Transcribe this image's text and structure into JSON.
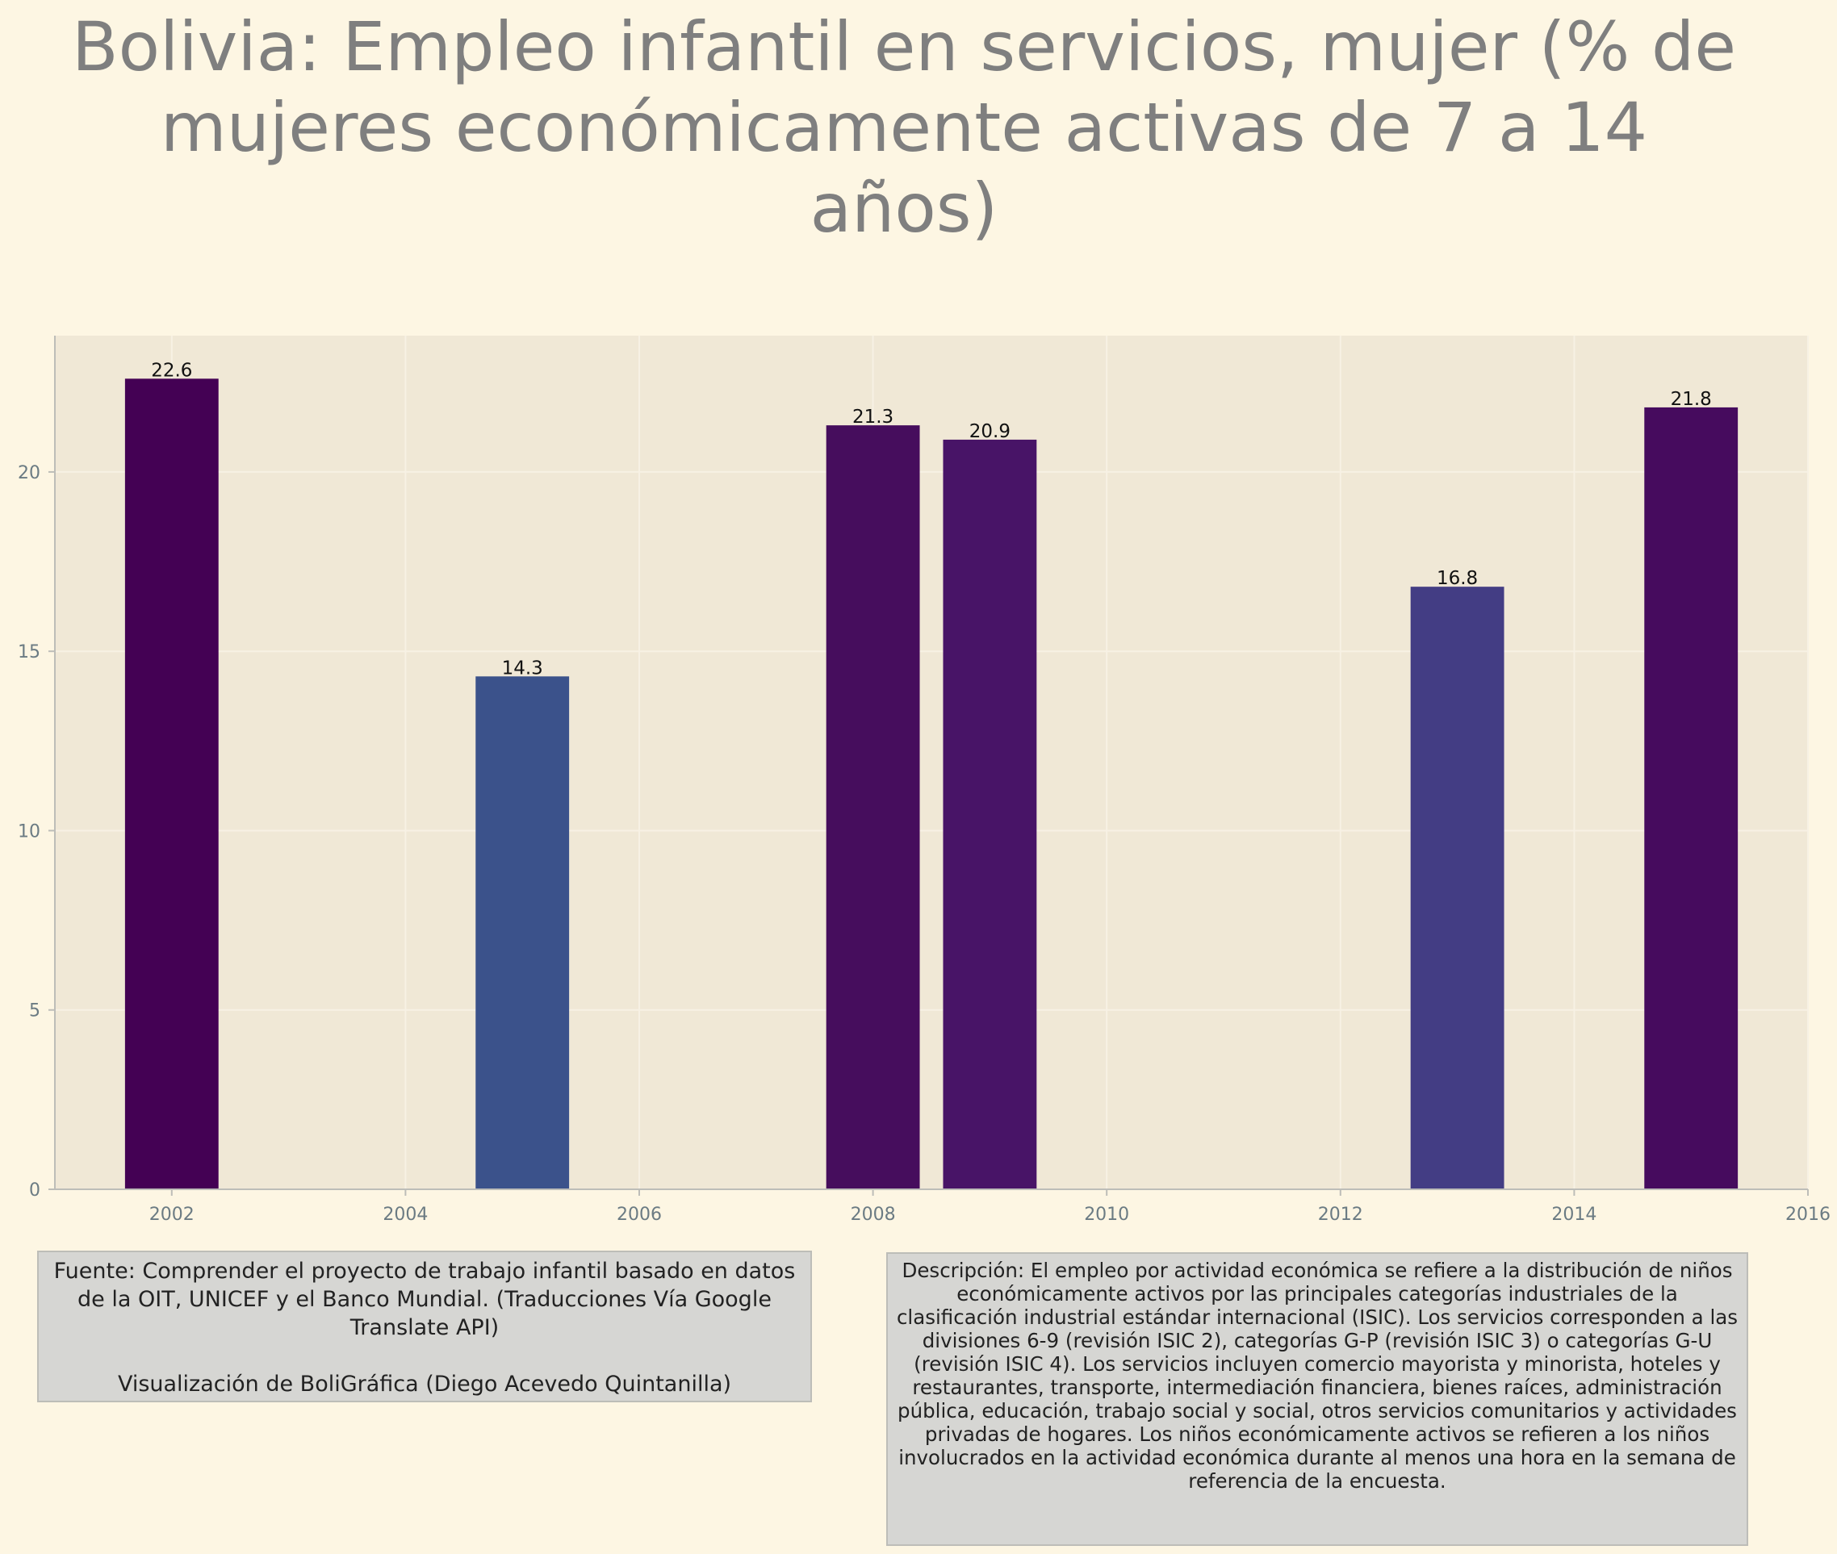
{
  "title": "Bolivia:  Empleo infantil en servicios, mujer (% de mujeres económicamente activas de 7 a 14 años)",
  "source": {
    "line1": "Fuente: Comprender el proyecto de trabajo infantil basado en datos de la OIT, UNICEF y el Banco Mundial. (Traducciones Vía Google Translate API)",
    "line2": "Visualización de BoliGráfica (Diego Acevedo Quintanilla)"
  },
  "description": "Descripción: El empleo por actividad económica se refiere a la distribución de niños económicamente activos por las principales categorías industriales de la clasificación industrial estándar internacional (ISIC). Los servicios corresponden a las divisiones 6-9 (revisión ISIC 2), categorías G-P (revisión ISIC 3) o categorías G-U (revisión ISIC 4). Los servicios incluyen comercio mayorista y minorista, hoteles y restaurantes, transporte, intermediación financiera, bienes raíces, administración pública, educación, trabajo social y social, otros servicios comunitarios y actividades privadas de hogares. Los niños económicamente activos se refieren a los niños involucrados en la actividad económica durante al menos una hora en la semana de referencia de la encuesta.",
  "chart_data": {
    "type": "bar",
    "x": [
      2002,
      2005,
      2008,
      2009,
      2013,
      2015
    ],
    "values": [
      22.6,
      14.3,
      21.3,
      20.9,
      16.8,
      21.8
    ],
    "data_labels": [
      "22.6",
      "14.3",
      "21.3",
      "20.9",
      "16.8",
      "21.8"
    ],
    "bar_colors": [
      "#440154",
      "#3b528b",
      "#460d5d",
      "#481467",
      "#433d84",
      "#460b5e"
    ],
    "xlim": [
      2001,
      2016
    ],
    "ylim": [
      0,
      23.8
    ],
    "xticks": [
      2002,
      2004,
      2006,
      2008,
      2010,
      2012,
      2014,
      2016
    ],
    "xtick_labels": [
      "2002",
      "2004",
      "2006",
      "2008",
      "2010",
      "2012",
      "2014",
      "2016"
    ],
    "yticks": [
      0,
      5,
      10,
      15,
      20
    ],
    "ytick_labels": [
      "0",
      "5",
      "10",
      "15",
      "20"
    ],
    "grid": true,
    "plot_background": "#f0e8d6",
    "axis_color": "#bdbdb8",
    "tick_label_color": "#6b7b83"
  }
}
